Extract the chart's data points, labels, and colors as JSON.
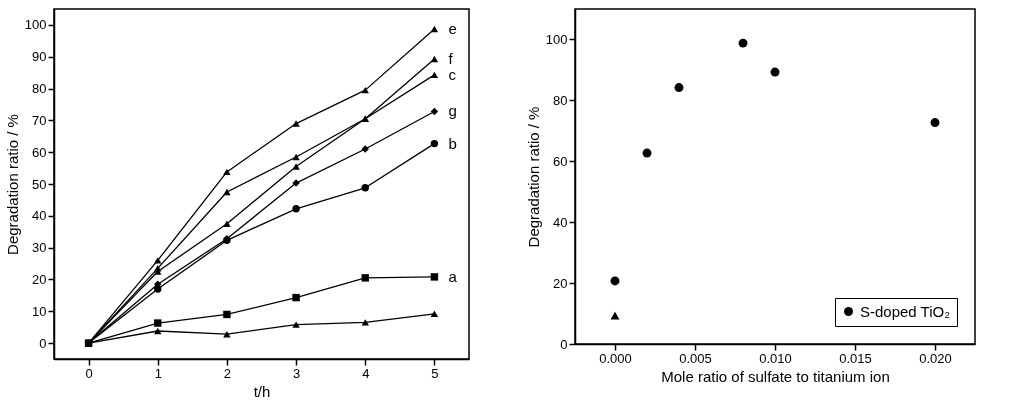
{
  "chart_data": [
    {
      "type": "line",
      "xlabel": "t/h",
      "ylabel": "Degradation ratio / %",
      "x": [
        0,
        1,
        2,
        3,
        4,
        5
      ],
      "xlim": [
        -0.5,
        5.5
      ],
      "xticks": [
        0,
        1,
        2,
        3,
        4,
        5
      ],
      "ylim": [
        -5,
        105
      ],
      "yticks": [
        0,
        10,
        20,
        30,
        40,
        50,
        60,
        70,
        80,
        90,
        100
      ],
      "grid": false,
      "legend": false,
      "line_style": "solid",
      "series": [
        {
          "name": "a",
          "color": "#000000",
          "marker": "square",
          "values": [
            0,
            6.3,
            9,
            14.3,
            20.5,
            20.8
          ]
        },
        {
          "name": "b",
          "color": "#000000",
          "marker": "circle",
          "values": [
            0,
            17,
            32.3,
            42.2,
            48.8,
            62.7
          ]
        },
        {
          "name": "c",
          "color": "#000000",
          "marker": "triangle",
          "values": [
            0,
            22.5,
            37.5,
            55.5,
            70.5,
            84.3
          ]
        },
        {
          "name": "e",
          "color": "#000000",
          "marker": "triangle",
          "values": [
            0,
            26,
            53.8,
            69,
            79.5,
            98.7
          ]
        },
        {
          "name": "f",
          "color": "#000000",
          "marker": "triangle",
          "values": [
            0,
            23.5,
            47.5,
            58.5,
            70.5,
            89.3
          ]
        },
        {
          "name": "g",
          "color": "#000000",
          "marker": "diamond",
          "values": [
            0,
            18.5,
            32.8,
            50.3,
            61,
            72.8
          ]
        },
        {
          "color": "#000000",
          "marker": "triangle",
          "values": [
            0,
            3.8,
            2.8,
            5.8,
            6.5,
            9.2
          ]
        }
      ]
    },
    {
      "type": "scatter",
      "xlabel": "Mole ratio of sulfate to titanium ion",
      "ylabel": "Degradation ratio / %",
      "xlim": [
        -0.0025,
        0.0225
      ],
      "xticks": [
        {
          "value": 0,
          "label": "0.000"
        },
        {
          "value": 0.005,
          "label": "0.005"
        },
        {
          "value": 0.01,
          "label": "0.010"
        },
        {
          "value": 0.015,
          "label": "0.015"
        },
        {
          "value": 0.02,
          "label": "0.020"
        }
      ],
      "ylim": [
        0,
        110
      ],
      "yticks": [
        0,
        20,
        40,
        60,
        80,
        100
      ],
      "grid": false,
      "legend": "bottom right",
      "series": [
        {
          "name": "S-doped TiO₂",
          "color": "#000000",
          "marker": "circle",
          "x": [
            0,
            0.002,
            0.004,
            0.008,
            0.01,
            0.02
          ],
          "values": [
            20.7,
            62.7,
            84.2,
            98.8,
            89.3,
            72.7
          ]
        },
        {
          "color": "#000000",
          "marker": "triangle",
          "x": [
            0
          ],
          "values": [
            9.3
          ]
        }
      ]
    }
  ]
}
